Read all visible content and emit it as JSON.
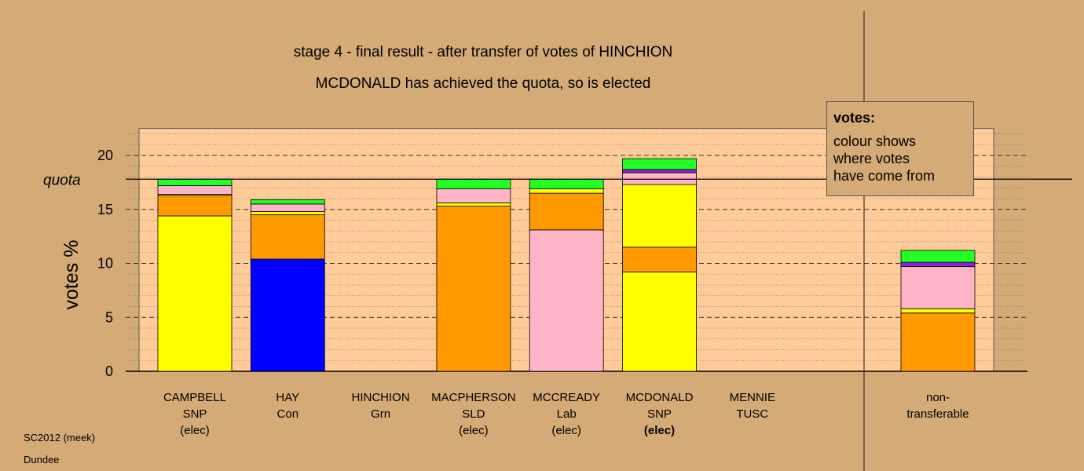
{
  "titles": {
    "line1": "stage 4 - final result - after transfer of votes of HINCHION",
    "line2": "MCDONALD has achieved the quota, so is elected"
  },
  "footer": {
    "line1": "SC2012 (meek)",
    "line2": "Dundee"
  },
  "legend": {
    "title": "votes:",
    "lines": [
      "colour shows",
      "where votes",
      "have come from"
    ]
  },
  "colors": {
    "background": "#d4aa76",
    "plot_background": "#ffcc99",
    "yellow": "#ffff00",
    "orange": "#ff9900",
    "pink": "#ffb3c6",
    "green": "#22ff22",
    "blue": "#0000ff",
    "purple": "#8822dd",
    "lightyellow": "#ffff99"
  },
  "chart_data": {
    "type": "bar",
    "stacked": true,
    "ylabel": "votes %",
    "ylim": [
      0,
      22.5
    ],
    "yticks": [
      0,
      5,
      10,
      15,
      20
    ],
    "quota": 17.8,
    "quota_label": "quota",
    "grid": true,
    "categories": [
      {
        "name": "CAMPBELL",
        "party": "SNP",
        "status": "(elec)",
        "status_bold": false,
        "segments": [
          {
            "color": "yellow",
            "value": 14.4
          },
          {
            "color": "orange",
            "value": 1.9
          },
          {
            "color": "lightyellow",
            "value": 0.1
          },
          {
            "color": "pink",
            "value": 0.8
          },
          {
            "color": "green",
            "value": 0.6
          }
        ]
      },
      {
        "name": "HAY",
        "party": "Con",
        "status": "",
        "status_bold": false,
        "segments": [
          {
            "color": "blue",
            "value": 10.4
          },
          {
            "color": "orange",
            "value": 4.1
          },
          {
            "color": "yellow",
            "value": 0.3
          },
          {
            "color": "pink",
            "value": 0.7
          },
          {
            "color": "green",
            "value": 0.4
          }
        ]
      },
      {
        "name": "HINCHION",
        "party": "Grn",
        "status": "",
        "status_bold": false,
        "segments": []
      },
      {
        "name": "MACPHERSON",
        "party": "SLD",
        "status": "(elec)",
        "status_bold": false,
        "segments": [
          {
            "color": "orange",
            "value": 15.3
          },
          {
            "color": "yellow",
            "value": 0.3
          },
          {
            "color": "pink",
            "value": 1.3
          },
          {
            "color": "green",
            "value": 0.9
          }
        ]
      },
      {
        "name": "MCCREADY",
        "party": "Lab",
        "status": "(elec)",
        "status_bold": false,
        "segments": [
          {
            "color": "pink",
            "value": 13.1
          },
          {
            "color": "orange",
            "value": 3.4
          },
          {
            "color": "yellow",
            "value": 0.4
          },
          {
            "color": "green",
            "value": 0.9
          }
        ]
      },
      {
        "name": "MCDONALD",
        "party": "SNP",
        "status": "(elec)",
        "status_bold": true,
        "segments": [
          {
            "color": "yellow",
            "value": 9.2
          },
          {
            "color": "orange",
            "value": 2.3
          },
          {
            "color": "yellow",
            "value": 5.8
          },
          {
            "color": "pink",
            "value": 1.1
          },
          {
            "color": "purple",
            "value": 0.3
          },
          {
            "color": "green",
            "value": 1.0
          }
        ]
      },
      {
        "name": "MENNIE",
        "party": "TUSC",
        "status": "",
        "status_bold": false,
        "segments": []
      }
    ],
    "nontransferable": {
      "label_line1": "non-",
      "label_line2": "transferable",
      "segments": [
        {
          "color": "orange",
          "value": 5.4
        },
        {
          "color": "yellow",
          "value": 0.4
        },
        {
          "color": "pink",
          "value": 3.9
        },
        {
          "color": "purple",
          "value": 0.4
        },
        {
          "color": "green",
          "value": 1.1
        }
      ]
    }
  }
}
